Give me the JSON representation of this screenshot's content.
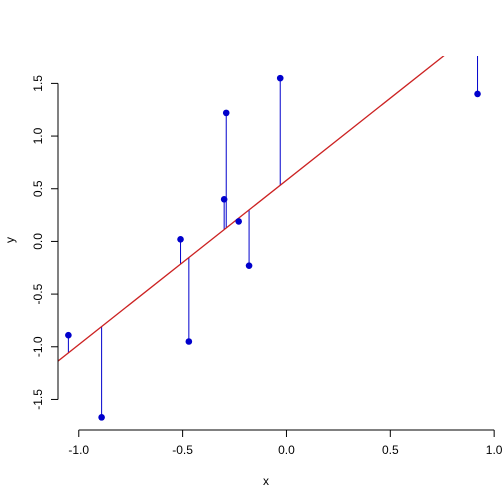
{
  "chart_data": {
    "type": "scatter",
    "title": "",
    "xlabel": "x",
    "ylabel": "y",
    "xlim": [
      -1.1,
      0.98
    ],
    "ylim": [
      -1.79,
      1.76
    ],
    "grid": false,
    "x_ticks": [
      -1.0,
      -0.5,
      0.0,
      0.5,
      1.0
    ],
    "x_tick_labels": [
      "-1.0",
      "-0.5",
      "0.0",
      "0.5",
      "1.0"
    ],
    "y_ticks": [
      -1.5,
      -1.0,
      -0.5,
      0.0,
      0.5,
      1.0,
      1.5
    ],
    "y_tick_labels": [
      "-1.5",
      "-1.0",
      "-0.5",
      "0.0",
      "0.5",
      "1.0",
      "1.5"
    ],
    "points": [
      {
        "x": -1.05,
        "y": -0.89
      },
      {
        "x": -0.89,
        "y": -1.67
      },
      {
        "x": -0.51,
        "y": 0.02
      },
      {
        "x": -0.47,
        "y": -0.95
      },
      {
        "x": -0.3,
        "y": 0.4
      },
      {
        "x": -0.29,
        "y": 1.22
      },
      {
        "x": -0.23,
        "y": 0.19
      },
      {
        "x": -0.18,
        "y": -0.23
      },
      {
        "x": -0.03,
        "y": 1.55
      },
      {
        "x": 0.92,
        "y": 1.4
      }
    ],
    "fit_line": {
      "intercept": 0.58,
      "slope": 1.56
    },
    "colors": {
      "points": "#0000cc",
      "residuals": "#0000cc",
      "fit_line": "#cc2222"
    }
  }
}
